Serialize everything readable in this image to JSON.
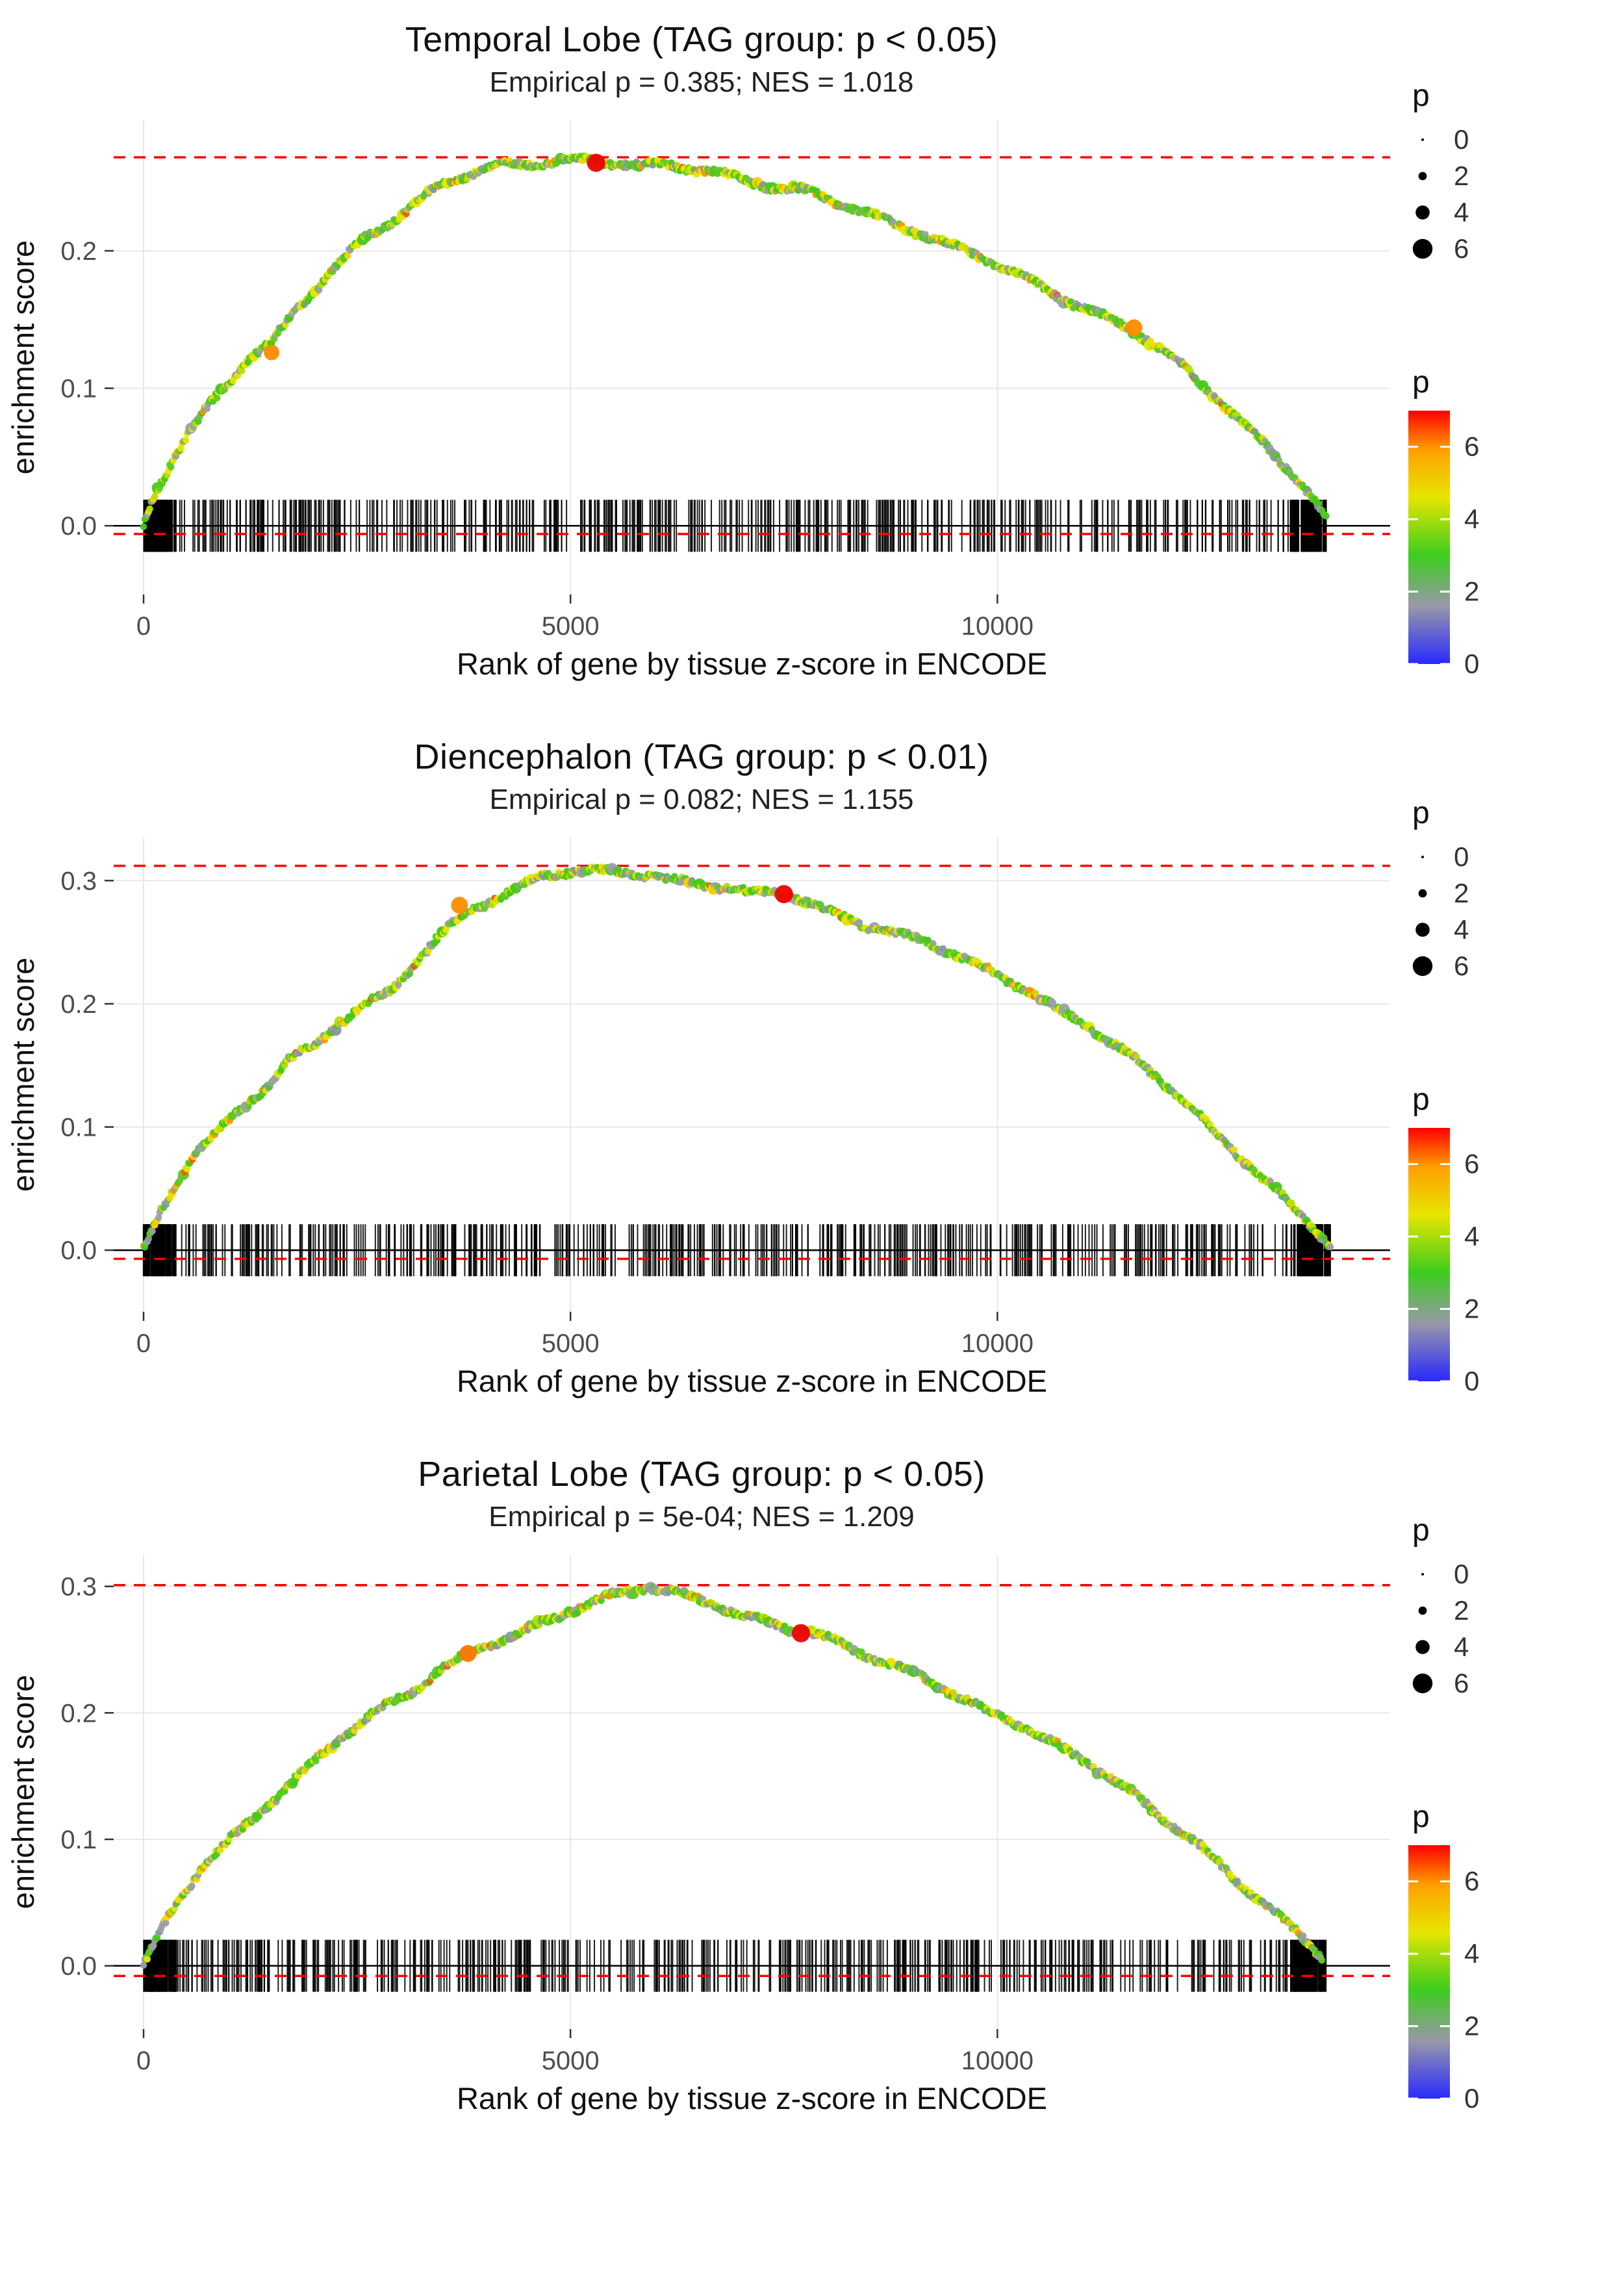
{
  "figure": {
    "background": "#ffffff"
  },
  "style": {
    "grid_color": "#e8e8e8",
    "dashed_line_color": "#ff0000",
    "zero_line_color": "#000000",
    "rug_color": "#000000",
    "tick_label_color": "#4d4d4d",
    "axis_title_color": "#111111"
  },
  "legend": {
    "size": {
      "title": "p",
      "values": [
        0,
        2,
        4,
        6
      ]
    },
    "color": {
      "title": "p",
      "ticks": [
        0,
        2,
        4,
        6
      ],
      "range": [
        0,
        7
      ],
      "stops": [
        {
          "v": 0.0,
          "c": "#2929ff"
        },
        {
          "v": 1.6,
          "c": "#9898a8"
        },
        {
          "v": 3.0,
          "c": "#3dcc1e"
        },
        {
          "v": 4.6,
          "c": "#e6e600"
        },
        {
          "v": 5.9,
          "c": "#ffa000"
        },
        {
          "v": 7.0,
          "c": "#ff0000"
        }
      ]
    }
  },
  "point_palette": [
    {
      "c": "#9aa0a6",
      "w": 0.18
    },
    {
      "c": "#8a93a8",
      "w": 0.05
    },
    {
      "c": "#49c81c",
      "w": 0.26
    },
    {
      "c": "#5ecb24",
      "w": 0.14
    },
    {
      "c": "#b8e000",
      "w": 0.1
    },
    {
      "c": "#e6e600",
      "w": 0.17
    },
    {
      "c": "#ffd000",
      "w": 0.06
    },
    {
      "c": "#ff9500",
      "w": 0.03
    },
    {
      "c": "#ff5500",
      "w": 0.01
    }
  ],
  "chart_data": [
    {
      "type": "line",
      "title": "Temporal Lobe (TAG group: p < 0.05)",
      "subtitle": "Empirical p = 0.385; NES = 1.018",
      "xlabel": "Rank of gene by tissue z-score in ENCODE",
      "ylabel": "enrichment score",
      "xlim": [
        -350,
        14600
      ],
      "ylim": [
        -0.05,
        0.295
      ],
      "xticks": [
        0,
        5000,
        10000
      ],
      "yticks": [
        0.0,
        0.1,
        0.2
      ],
      "es_max_line": 0.268,
      "es_min_line": -0.006,
      "zero_line": 0,
      "curve": [
        [
          0,
          0.0
        ],
        [
          100,
          0.02
        ],
        [
          400,
          0.055
        ],
        [
          800,
          0.09
        ],
        [
          1200,
          0.12
        ],
        [
          1500,
          0.133
        ],
        [
          1800,
          0.158
        ],
        [
          2200,
          0.185
        ],
        [
          2600,
          0.21
        ],
        [
          3000,
          0.225
        ],
        [
          3400,
          0.245
        ],
        [
          3800,
          0.256
        ],
        [
          4200,
          0.262
        ],
        [
          4600,
          0.264
        ],
        [
          5000,
          0.266
        ],
        [
          5400,
          0.265
        ],
        [
          5800,
          0.262
        ],
        [
          6200,
          0.262
        ],
        [
          6600,
          0.258
        ],
        [
          7000,
          0.252
        ],
        [
          7400,
          0.246
        ],
        [
          7800,
          0.243
        ],
        [
          8200,
          0.234
        ],
        [
          8600,
          0.224
        ],
        [
          9000,
          0.215
        ],
        [
          9400,
          0.205
        ],
        [
          9800,
          0.196
        ],
        [
          10200,
          0.184
        ],
        [
          10600,
          0.171
        ],
        [
          11000,
          0.158
        ],
        [
          11400,
          0.148
        ],
        [
          11800,
          0.134
        ],
        [
          12200,
          0.114
        ],
        [
          12600,
          0.091
        ],
        [
          13000,
          0.067
        ],
        [
          13400,
          0.042
        ],
        [
          13700,
          0.02
        ],
        [
          13850,
          0.004
        ]
      ],
      "highlights": [
        {
          "x": 5300,
          "y": 0.264,
          "color": "#ee0000",
          "r": 14
        },
        {
          "x": 1500,
          "y": 0.126,
          "color": "#ff8c00",
          "r": 12
        },
        {
          "x": 11600,
          "y": 0.144,
          "color": "#ff8c00",
          "r": 13
        }
      ],
      "rug": {
        "count": 540,
        "seed": 11,
        "xmax": 13850
      },
      "seed": 3
    },
    {
      "type": "line",
      "title": "Diencephalon (TAG group: p < 0.01)",
      "subtitle": "Empirical p = 0.082; NES = 1.155",
      "xlabel": "Rank of gene by tissue z-score in ENCODE",
      "ylabel": "enrichment score",
      "xlim": [
        -350,
        14600
      ],
      "ylim": [
        -0.05,
        0.335
      ],
      "xticks": [
        0,
        5000,
        10000
      ],
      "yticks": [
        0.0,
        0.1,
        0.2,
        0.3
      ],
      "es_max_line": 0.312,
      "es_min_line": -0.007,
      "zero_line": 0,
      "curve": [
        [
          0,
          0.0
        ],
        [
          200,
          0.03
        ],
        [
          600,
          0.08
        ],
        [
          1000,
          0.105
        ],
        [
          1400,
          0.13
        ],
        [
          1700,
          0.155
        ],
        [
          2000,
          0.165
        ],
        [
          2300,
          0.185
        ],
        [
          2600,
          0.2
        ],
        [
          2900,
          0.21
        ],
        [
          3200,
          0.235
        ],
        [
          3500,
          0.258
        ],
        [
          3800,
          0.274
        ],
        [
          4100,
          0.285
        ],
        [
          4400,
          0.295
        ],
        [
          4700,
          0.304
        ],
        [
          5000,
          0.308
        ],
        [
          5300,
          0.308
        ],
        [
          5600,
          0.306
        ],
        [
          5900,
          0.305
        ],
        [
          6200,
          0.3
        ],
        [
          6500,
          0.297
        ],
        [
          6800,
          0.295
        ],
        [
          7100,
          0.29
        ],
        [
          7400,
          0.29
        ],
        [
          7700,
          0.285
        ],
        [
          8000,
          0.275
        ],
        [
          8300,
          0.268
        ],
        [
          8600,
          0.26
        ],
        [
          8900,
          0.255
        ],
        [
          9200,
          0.25
        ],
        [
          9500,
          0.24
        ],
        [
          9800,
          0.23
        ],
        [
          10100,
          0.22
        ],
        [
          10400,
          0.209
        ],
        [
          10700,
          0.195
        ],
        [
          11000,
          0.185
        ],
        [
          11300,
          0.17
        ],
        [
          11600,
          0.155
        ],
        [
          11900,
          0.139
        ],
        [
          12200,
          0.119
        ],
        [
          12500,
          0.099
        ],
        [
          12800,
          0.079
        ],
        [
          13100,
          0.059
        ],
        [
          13400,
          0.039
        ],
        [
          13700,
          0.019
        ],
        [
          13900,
          0.004
        ]
      ],
      "highlights": [
        {
          "x": 3700,
          "y": 0.28,
          "color": "#ff8c00",
          "r": 13
        },
        {
          "x": 7500,
          "y": 0.289,
          "color": "#ee0000",
          "r": 14
        }
      ],
      "rug": {
        "count": 540,
        "seed": 29,
        "xmax": 13900
      },
      "seed": 7
    },
    {
      "type": "line",
      "title": "Parietal Lobe (TAG group: p < 0.05)",
      "subtitle": "Empirical p = 5e-04; NES = 1.209",
      "xlabel": "Rank of gene by tissue z-score in ENCODE",
      "ylabel": "enrichment score",
      "xlim": [
        -350,
        14600
      ],
      "ylim": [
        -0.05,
        0.325
      ],
      "xticks": [
        0,
        5000,
        10000
      ],
      "yticks": [
        0.0,
        0.1,
        0.2,
        0.3
      ],
      "es_max_line": 0.301,
      "es_min_line": -0.008,
      "zero_line": 0,
      "curve": [
        [
          0,
          0.0
        ],
        [
          300,
          0.04
        ],
        [
          700,
          0.08
        ],
        [
          1100,
          0.105
        ],
        [
          1500,
          0.13
        ],
        [
          1900,
          0.155
        ],
        [
          2300,
          0.18
        ],
        [
          2700,
          0.2
        ],
        [
          3100,
          0.215
        ],
        [
          3500,
          0.235
        ],
        [
          3900,
          0.25
        ],
        [
          4300,
          0.26
        ],
        [
          4700,
          0.272
        ],
        [
          5100,
          0.283
        ],
        [
          5500,
          0.293
        ],
        [
          5900,
          0.3
        ],
        [
          6300,
          0.294
        ],
        [
          6700,
          0.285
        ],
        [
          7100,
          0.275
        ],
        [
          7500,
          0.268
        ],
        [
          7900,
          0.262
        ],
        [
          8300,
          0.25
        ],
        [
          8700,
          0.24
        ],
        [
          9100,
          0.229
        ],
        [
          9500,
          0.215
        ],
        [
          9900,
          0.2
        ],
        [
          10300,
          0.19
        ],
        [
          10700,
          0.174
        ],
        [
          11100,
          0.159
        ],
        [
          11500,
          0.14
        ],
        [
          11900,
          0.119
        ],
        [
          12300,
          0.099
        ],
        [
          12700,
          0.074
        ],
        [
          13100,
          0.05
        ],
        [
          13500,
          0.027
        ],
        [
          13800,
          0.008
        ]
      ],
      "highlights": [
        {
          "x": 3800,
          "y": 0.247,
          "color": "#ff7700",
          "r": 13
        },
        {
          "x": 7700,
          "y": 0.263,
          "color": "#ee0000",
          "r": 14
        }
      ],
      "rug": {
        "count": 540,
        "seed": 47,
        "xmax": 13850
      },
      "seed": 13
    }
  ]
}
